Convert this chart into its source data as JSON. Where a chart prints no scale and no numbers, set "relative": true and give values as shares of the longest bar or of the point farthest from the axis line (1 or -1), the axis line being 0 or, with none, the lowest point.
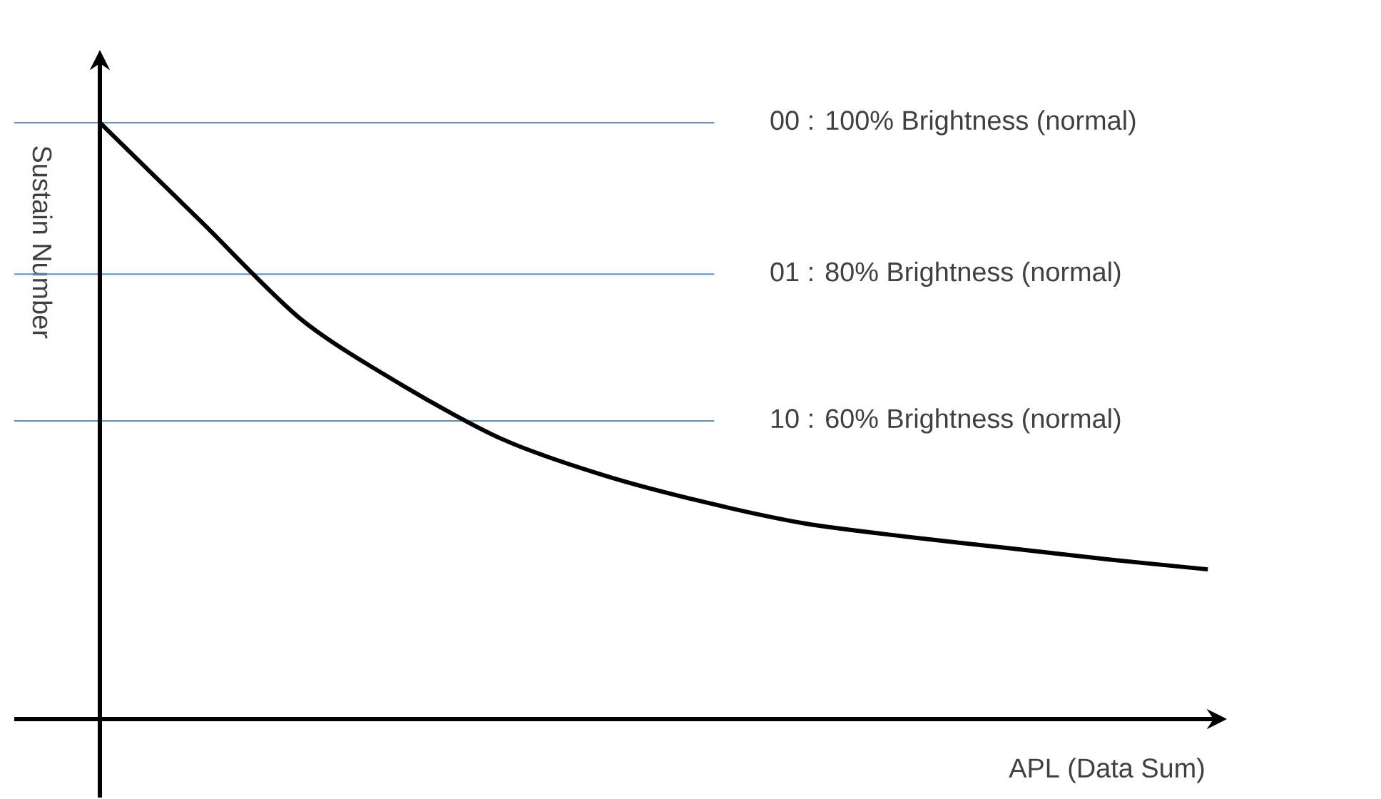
{
  "chart_data": {
    "type": "line",
    "relative": true,
    "xlabel": "APL (Data Sum)",
    "ylabel": "Sustain Number",
    "categories": [
      null,
      null,
      null,
      null,
      null,
      null,
      null,
      null,
      null,
      null,
      null,
      null
    ],
    "series": [
      {
        "color": "#000000",
        "values": [
          1.0,
          0.835,
          0.67,
          0.56,
          0.469,
          0.409,
          0.364,
          0.328,
          0.306,
          0.287,
          0.268,
          0.251
        ]
      }
    ],
    "marker": "none",
    "ref_lines": [
      {
        "axis": "y",
        "value": 1.0,
        "color": "#5b8fd0"
      },
      {
        "axis": "y",
        "value": 0.746,
        "color": "#5b8fd0"
      },
      {
        "axis": "y",
        "value": 0.5,
        "color": "#5b8fd0"
      }
    ],
    "annotations": [
      "00 : 100% Brightness (normal)",
      "01 : 80% Brightness (normal)",
      "10 : 60% Brightness (normal)"
    ]
  }
}
